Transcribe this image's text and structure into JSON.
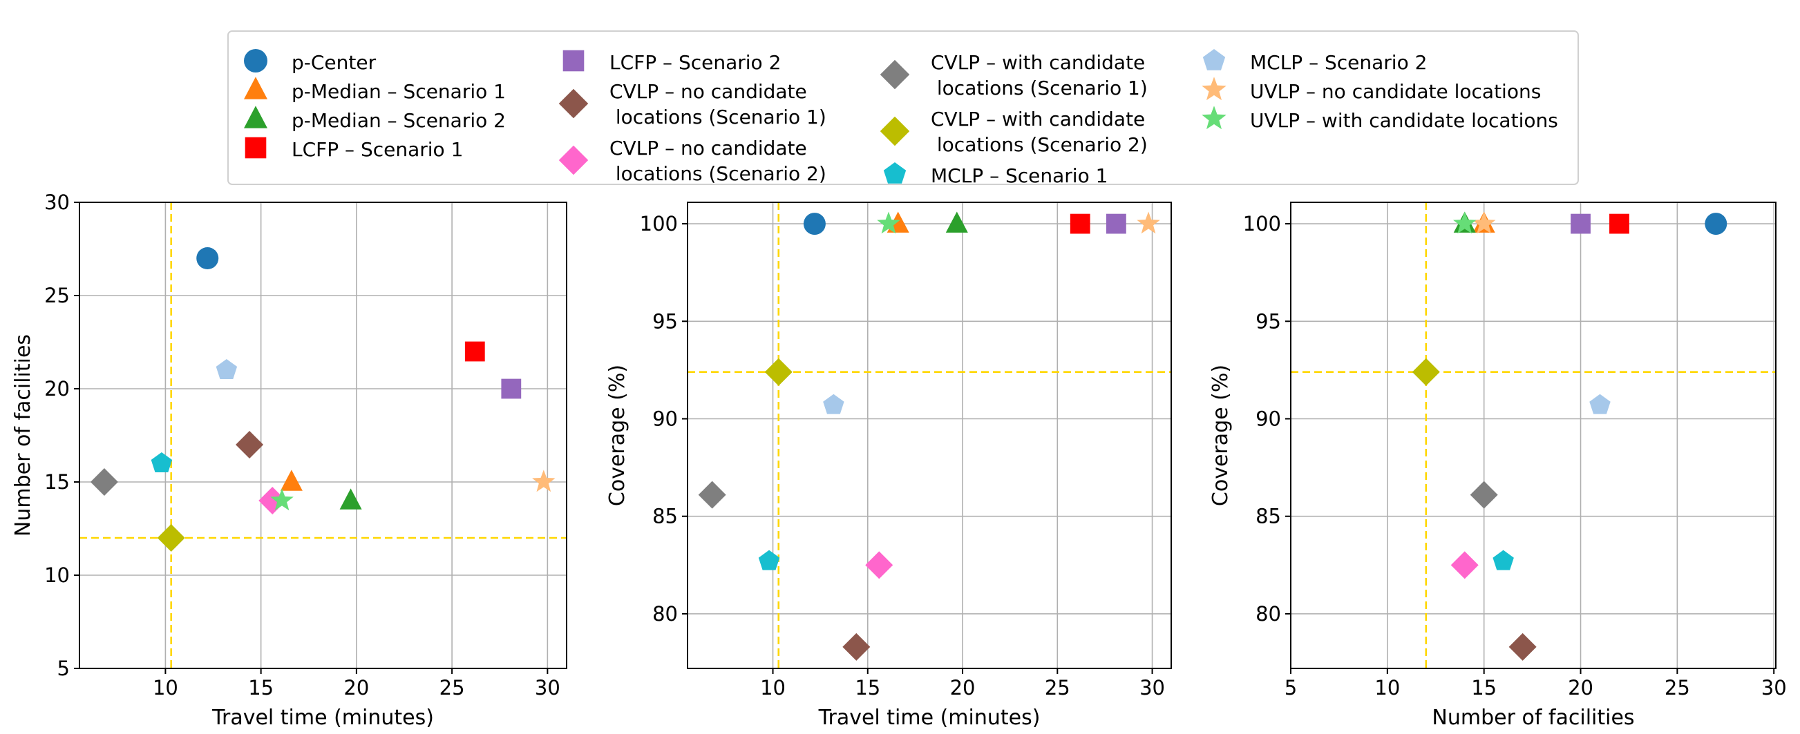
{
  "legend": {
    "entries": [
      {
        "key": "pCenter",
        "lines": [
          "p-Center"
        ],
        "color": "#1f77b4",
        "marker": "circle"
      },
      {
        "key": "pMedian1",
        "lines": [
          "p-Median – Scenario 1"
        ],
        "color": "#ff7f0e",
        "marker": "triangle"
      },
      {
        "key": "pMedian2",
        "lines": [
          "p-Median – Scenario 2"
        ],
        "color": "#2ca02c",
        "marker": "triangle"
      },
      {
        "key": "lcfp1",
        "lines": [
          "LCFP – Scenario 1"
        ],
        "color": "#ff0000",
        "marker": "square"
      },
      {
        "key": "lcfp2",
        "lines": [
          "LCFP – Scenario 2"
        ],
        "color": "#9467bd",
        "marker": "square"
      },
      {
        "key": "cvlpNo1",
        "lines": [
          "CVLP – no candidate",
          " locations (Scenario 1)"
        ],
        "color": "#8c564b",
        "marker": "diamond"
      },
      {
        "key": "cvlpNo2",
        "lines": [
          "CVLP – no candidate",
          " locations (Scenario 2)"
        ],
        "color": "#ff66cc",
        "marker": "diamond"
      },
      {
        "key": "cvlpWith1",
        "lines": [
          "CVLP – with candidate",
          " locations (Scenario 1)"
        ],
        "color": "#7f7f7f",
        "marker": "diamond"
      },
      {
        "key": "cvlpWith2",
        "lines": [
          "CVLP – with candidate",
          " locations (Scenario 2)"
        ],
        "color": "#bcbd00",
        "marker": "diamond"
      },
      {
        "key": "mclp1",
        "lines": [
          "MCLP – Scenario 1"
        ],
        "color": "#17becf",
        "marker": "pentagon"
      },
      {
        "key": "mclp2",
        "lines": [
          "MCLP – Scenario 2"
        ],
        "color": "#a6c8ea",
        "marker": "pentagon"
      },
      {
        "key": "uvlpNo",
        "lines": [
          "UVLP – no candidate locations"
        ],
        "color": "#ffbb78",
        "marker": "star"
      },
      {
        "key": "uvlpWith",
        "lines": [
          "UVLP – with candidate locations"
        ],
        "color": "#66dd77",
        "marker": "star"
      }
    ]
  },
  "chart_data": [
    {
      "type": "scatter",
      "xlabel": "Travel time (minutes)",
      "ylabel": "Number of facilities",
      "xlim": [
        5.5,
        31
      ],
      "ylim": [
        5,
        30
      ],
      "xticks": [
        10,
        15,
        20,
        25,
        30
      ],
      "yticks": [
        5,
        10,
        15,
        20,
        25,
        30
      ],
      "grid": true,
      "reference_lines": {
        "x": 10.3,
        "y": 12,
        "color": "#ffd700"
      },
      "points": [
        {
          "series": "pCenter",
          "x": 12.2,
          "y": 27
        },
        {
          "series": "pMedian1",
          "x": 16.6,
          "y": 15
        },
        {
          "series": "pMedian2",
          "x": 19.7,
          "y": 14
        },
        {
          "series": "lcfp1",
          "x": 26.2,
          "y": 22
        },
        {
          "series": "lcfp2",
          "x": 28.1,
          "y": 20
        },
        {
          "series": "cvlpNo1",
          "x": 14.4,
          "y": 17
        },
        {
          "series": "cvlpNo2",
          "x": 15.6,
          "y": 14
        },
        {
          "series": "cvlpWith1",
          "x": 6.8,
          "y": 15
        },
        {
          "series": "cvlpWith2",
          "x": 10.3,
          "y": 12
        },
        {
          "series": "mclp1",
          "x": 9.8,
          "y": 16
        },
        {
          "series": "mclp2",
          "x": 13.2,
          "y": 21
        },
        {
          "series": "uvlpNo",
          "x": 29.8,
          "y": 15
        },
        {
          "series": "uvlpWith",
          "x": 16.1,
          "y": 14
        }
      ]
    },
    {
      "type": "scatter",
      "xlabel": "Travel time (minutes)",
      "ylabel": "Coverage (%)",
      "xlim": [
        5.5,
        31
      ],
      "ylim": [
        77.2,
        101.1
      ],
      "xticks": [
        10,
        15,
        20,
        25,
        30
      ],
      "yticks": [
        80,
        85,
        90,
        95,
        100
      ],
      "grid": true,
      "reference_lines": {
        "x": 10.3,
        "y": 92.4,
        "color": "#ffd700"
      },
      "points": [
        {
          "series": "pCenter",
          "x": 12.2,
          "y": 100
        },
        {
          "series": "pMedian1",
          "x": 16.6,
          "y": 100
        },
        {
          "series": "pMedian2",
          "x": 19.7,
          "y": 100
        },
        {
          "series": "lcfp1",
          "x": 26.2,
          "y": 100
        },
        {
          "series": "lcfp2",
          "x": 28.1,
          "y": 100
        },
        {
          "series": "cvlpNo1",
          "x": 14.4,
          "y": 78.3
        },
        {
          "series": "cvlpNo2",
          "x": 15.6,
          "y": 82.5
        },
        {
          "series": "cvlpWith1",
          "x": 6.8,
          "y": 86.1
        },
        {
          "series": "cvlpWith2",
          "x": 10.3,
          "y": 92.4
        },
        {
          "series": "mclp1",
          "x": 9.8,
          "y": 82.7
        },
        {
          "series": "mclp2",
          "x": 13.2,
          "y": 90.7
        },
        {
          "series": "uvlpNo",
          "x": 29.8,
          "y": 100
        },
        {
          "series": "uvlpWith",
          "x": 16.1,
          "y": 100
        }
      ]
    },
    {
      "type": "scatter",
      "xlabel": "Number of facilities",
      "ylabel": "Coverage (%)",
      "xlim": [
        5,
        30.1
      ],
      "ylim": [
        77.2,
        101.1
      ],
      "xticks": [
        5,
        10,
        15,
        20,
        25,
        30
      ],
      "yticks": [
        80,
        85,
        90,
        95,
        100
      ],
      "grid": true,
      "reference_lines": {
        "x": 12,
        "y": 92.4,
        "color": "#ffd700"
      },
      "points": [
        {
          "series": "pCenter",
          "x": 27,
          "y": 100
        },
        {
          "series": "pMedian1",
          "x": 15,
          "y": 100
        },
        {
          "series": "pMedian2",
          "x": 14,
          "y": 100
        },
        {
          "series": "lcfp1",
          "x": 22,
          "y": 100
        },
        {
          "series": "lcfp2",
          "x": 20,
          "y": 100
        },
        {
          "series": "cvlpNo1",
          "x": 17,
          "y": 78.3
        },
        {
          "series": "cvlpNo2",
          "x": 14,
          "y": 82.5
        },
        {
          "series": "cvlpWith1",
          "x": 15,
          "y": 86.1
        },
        {
          "series": "cvlpWith2",
          "x": 12,
          "y": 92.4
        },
        {
          "series": "mclp1",
          "x": 16,
          "y": 82.7
        },
        {
          "series": "mclp2",
          "x": 21,
          "y": 90.7
        },
        {
          "series": "uvlpNo",
          "x": 15,
          "y": 100
        },
        {
          "series": "uvlpWith",
          "x": 14,
          "y": 100
        }
      ]
    }
  ]
}
